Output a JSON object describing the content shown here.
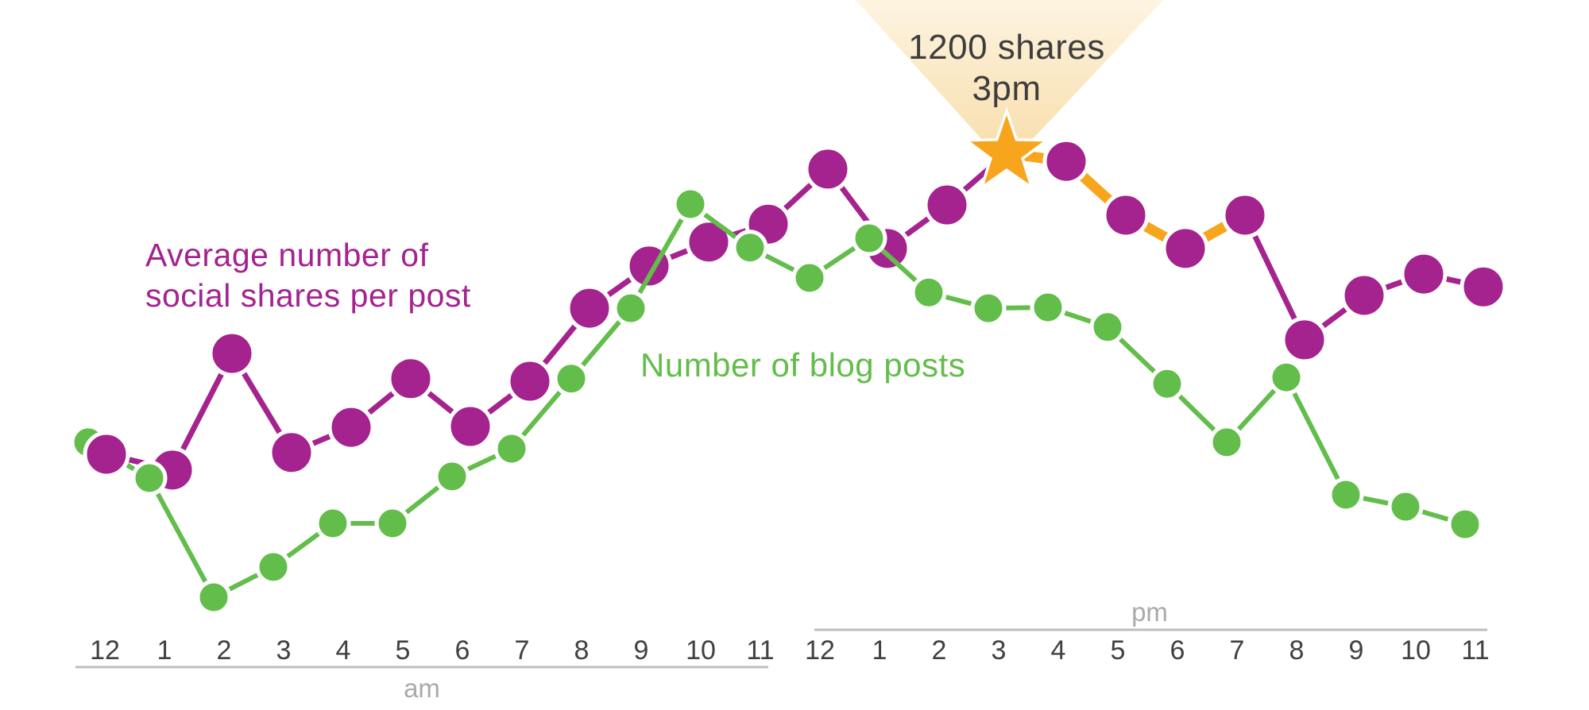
{
  "annotation": {
    "line1": "1200 shares",
    "line2": "3pm"
  },
  "legend": {
    "shares_line1": "Average number of",
    "shares_line2": "social shares per post",
    "posts_label": "Number of blog posts"
  },
  "axis": {
    "am_label": "am",
    "pm_label": "pm",
    "hours": [
      "12",
      "1",
      "2",
      "3",
      "4",
      "5",
      "6",
      "7",
      "8",
      "9",
      "10",
      "11"
    ]
  },
  "colors": {
    "purple": "#A5238E",
    "green": "#63BD4B",
    "orange": "#F8A51E",
    "beam_top": "#FDF4E1",
    "beam_bottom": "#F8DCA6",
    "tick_text": "#414042",
    "muted_text": "#A9AAAC",
    "axis_line": "#BDBEC0",
    "annotation_text": "#3E3E3E"
  },
  "chart_data": {
    "type": "line",
    "categories": [
      "12am",
      "1am",
      "2am",
      "3am",
      "4am",
      "5am",
      "6am",
      "7am",
      "8am",
      "9am",
      "10am",
      "11am",
      "12pm",
      "1pm",
      "2pm",
      "3pm",
      "4pm",
      "5pm",
      "6pm",
      "7pm",
      "8pm",
      "9pm",
      "10pm",
      "11pm"
    ],
    "series": [
      {
        "name": "Average number of social shares per post",
        "color": "#A5238E",
        "values": [
          495,
          458,
          731,
          499,
          558,
          672,
          560,
          666,
          837,
          936,
          992,
          1034,
          1163,
          977,
          1079,
          1200,
          1181,
          1055,
          977,
          1055,
          763,
          867,
          917,
          887
        ]
      },
      {
        "name": "Number of blog posts",
        "color": "#63BD4B",
        "values": [
          523,
          439,
          160,
          231,
          333,
          333,
          443,
          508,
          672,
          837,
          1081,
          979,
          908,
          1001,
          874,
          837,
          839,
          793,
          660,
          523,
          675,
          400,
          372,
          331
        ]
      }
    ],
    "highlight": {
      "series": "Average number of social shares per post",
      "category": "3pm",
      "value": 1200,
      "label_line1": "1200 shares",
      "label_line2": "3pm",
      "marker": "star",
      "color": "#F8A51E",
      "highlighted_segments": [
        "3pm-4pm",
        "4pm-5pm",
        "5pm-6pm",
        "6pm-7pm"
      ]
    },
    "x_axis": {
      "groups": [
        "am",
        "pm"
      ],
      "hours_per_group": 12,
      "hour_labels": [
        "12",
        "1",
        "2",
        "3",
        "4",
        "5",
        "6",
        "7",
        "8",
        "9",
        "10",
        "11"
      ]
    },
    "y_axis": {
      "visible": false,
      "range": [
        0,
        1300
      ],
      "note": "no y scale shown; values estimated from point positions, anchored to 1200 shares at 3pm"
    },
    "legend_position": "inline-labels",
    "grid": false
  }
}
